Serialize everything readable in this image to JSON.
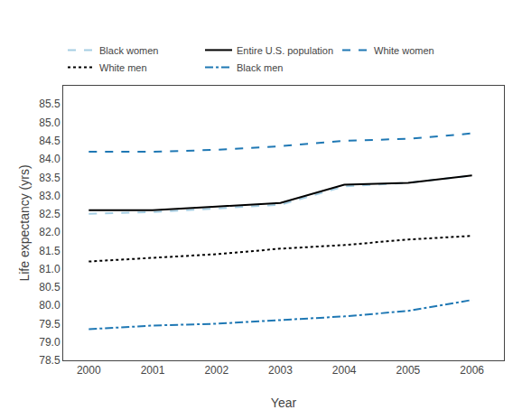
{
  "chart_data": {
    "type": "line",
    "x": [
      2000,
      2001,
      2002,
      2003,
      2004,
      2005,
      2006
    ],
    "series": [
      {
        "name": "Black women",
        "color": "#a6cee3",
        "line_style": "dashed",
        "values": [
          82.5,
          82.55,
          82.65,
          82.75,
          83.25,
          83.35,
          83.55
        ]
      },
      {
        "name": "Entire U.S. population",
        "color": "#000000",
        "line_style": "solid",
        "values": [
          82.6,
          82.6,
          82.7,
          82.8,
          83.3,
          83.35,
          83.55
        ]
      },
      {
        "name": "White women",
        "color": "#1f78b4",
        "line_style": "dashed",
        "values": [
          84.2,
          84.2,
          84.25,
          84.35,
          84.5,
          84.55,
          84.7
        ]
      },
      {
        "name": "White men",
        "color": "#000000",
        "line_style": "dotted",
        "values": [
          81.2,
          81.3,
          81.4,
          81.55,
          81.65,
          81.8,
          81.9
        ]
      },
      {
        "name": "Black men",
        "color": "#1f78b4",
        "line_style": "dashdot",
        "values": [
          79.35,
          79.45,
          79.5,
          79.6,
          79.7,
          79.85,
          80.15
        ]
      }
    ],
    "xlabel": "Year",
    "ylabel": "Life expectancy (yrs)",
    "xlim": [
      1999.6,
      2006.5
    ],
    "ylim": [
      78.5,
      86.0
    ],
    "xticks": [
      2000,
      2001,
      2002,
      2003,
      2004,
      2005,
      2006
    ],
    "yticks": [
      78.5,
      {
        "value": 79,
        "label": "79.0"
      },
      79.5,
      {
        "value": 80,
        "label": "80.0"
      },
      80.5,
      {
        "value": 81,
        "label": "81.0"
      },
      81.5,
      {
        "value": 82,
        "label": "82.0"
      },
      82.5,
      {
        "value": 83,
        "label": "83.0"
      },
      83.5,
      {
        "value": 84,
        "label": "84.0"
      },
      84.5,
      {
        "value": 85,
        "label": "85.0"
      },
      85.5
    ],
    "grid": false,
    "legend": "upper left"
  }
}
